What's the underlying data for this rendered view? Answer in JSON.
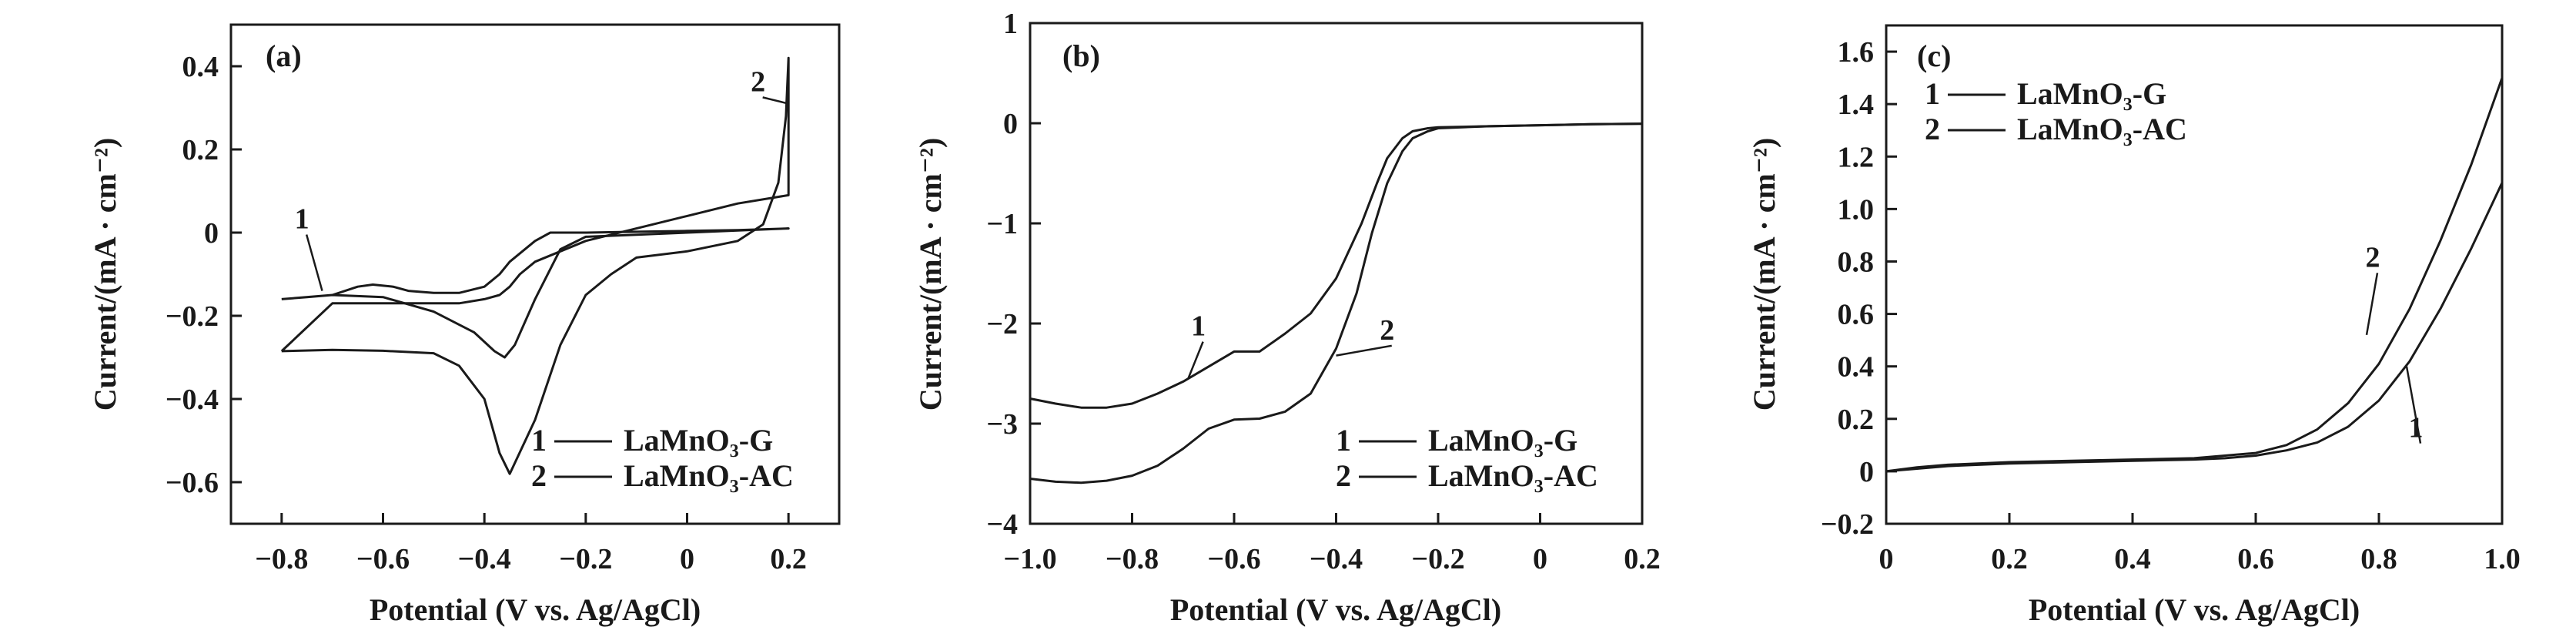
{
  "chart_data": [
    {
      "panel": "(a)",
      "type": "line",
      "xlabel": "Potential (V vs. Ag/AgCl)",
      "ylabel": "Current/(mA · cm⁻²)",
      "xlim": [
        -0.9,
        0.3
      ],
      "ylim": [
        -0.7,
        0.5
      ],
      "x_ticks": [
        "−0.8",
        "−0.6",
        "−0.4",
        "−0.2",
        "0",
        "0.2"
      ],
      "x_tick_values": [
        -0.8,
        -0.6,
        -0.4,
        -0.2,
        0,
        0.2
      ],
      "y_ticks": [
        "0.4",
        "0.2",
        "0",
        "−0.2",
        "−0.4",
        "−0.6"
      ],
      "y_tick_values": [
        0.4,
        0.2,
        0,
        -0.2,
        -0.4,
        -0.6
      ],
      "legend": [
        {
          "num": "1",
          "label": "LaMnO₃-G"
        },
        {
          "num": "2",
          "label": "LaMnO₃-AC"
        }
      ],
      "series": [
        {
          "name": "1",
          "x": [
            -0.8,
            -0.75,
            -0.7,
            -0.65,
            -0.62,
            -0.58,
            -0.55,
            -0.5,
            -0.45,
            -0.4,
            -0.37,
            -0.35,
            -0.3,
            -0.27,
            -0.25,
            -0.2,
            -0.1,
            0,
            0.1,
            0.2,
            0.2,
            0.1,
            0,
            -0.1,
            -0.2,
            -0.25,
            -0.3,
            -0.34,
            -0.36,
            -0.38,
            -0.42,
            -0.5,
            -0.6,
            -0.7,
            -0.8
          ],
          "y": [
            -0.16,
            -0.155,
            -0.15,
            -0.13,
            -0.125,
            -0.13,
            -0.14,
            -0.145,
            -0.145,
            -0.13,
            -0.1,
            -0.07,
            -0.02,
            0.0,
            0.0,
            0.0,
            0.002,
            0.004,
            0.006,
            0.01,
            0.01,
            0.005,
            0.0,
            -0.005,
            -0.01,
            -0.04,
            -0.16,
            -0.27,
            -0.3,
            -0.285,
            -0.24,
            -0.19,
            -0.155,
            -0.15,
            -0.16
          ]
        },
        {
          "name": "2",
          "x": [
            -0.8,
            -0.7,
            -0.6,
            -0.5,
            -0.45,
            -0.4,
            -0.37,
            -0.35,
            -0.3,
            -0.25,
            -0.2,
            -0.15,
            -0.1,
            0,
            0.1,
            0.15,
            0.18,
            0.195,
            0.2,
            0.2,
            0.1,
            0,
            -0.1,
            -0.2,
            -0.3,
            -0.33,
            -0.35,
            -0.37,
            -0.4,
            -0.45,
            -0.5,
            -0.6,
            -0.7,
            -0.8
          ],
          "y": [
            -0.285,
            -0.282,
            -0.284,
            -0.29,
            -0.32,
            -0.4,
            -0.53,
            -0.58,
            -0.45,
            -0.27,
            -0.15,
            -0.1,
            -0.06,
            -0.045,
            -0.02,
            0.02,
            0.12,
            0.28,
            0.42,
            0.09,
            0.07,
            0.04,
            0.01,
            -0.02,
            -0.07,
            -0.1,
            -0.13,
            -0.15,
            -0.16,
            -0.17,
            -0.17,
            -0.17,
            -0.17,
            -0.285
          ]
        }
      ],
      "annotations": [
        {
          "text": "1",
          "x": -0.76,
          "y": 0.01,
          "tip_x": -0.72,
          "tip_y": -0.14
        },
        {
          "text": "2",
          "x": 0.14,
          "y": 0.34,
          "tip_x": 0.2,
          "tip_y": 0.31
        }
      ]
    },
    {
      "panel": "(b)",
      "type": "line",
      "xlabel": "Potential (V vs. Ag/AgCl)",
      "ylabel": "Current/(mA · cm⁻²)",
      "xlim": [
        -1.0,
        0.2
      ],
      "ylim": [
        -4,
        1
      ],
      "x_ticks": [
        "−1.0",
        "−0.8",
        "−0.6",
        "−0.4",
        "−0.2",
        "0",
        "0.2"
      ],
      "x_tick_values": [
        -1.0,
        -0.8,
        -0.6,
        -0.4,
        -0.2,
        0,
        0.2
      ],
      "y_ticks": [
        "1",
        "0",
        "−1",
        "−2",
        "−3",
        "−4"
      ],
      "y_tick_values": [
        1,
        0,
        -1,
        -2,
        -3,
        -4
      ],
      "legend": [
        {
          "num": "1",
          "label": "LaMnO₃-G"
        },
        {
          "num": "2",
          "label": "LaMnO₃-AC"
        }
      ],
      "series": [
        {
          "name": "1",
          "x": [
            -1.0,
            -0.95,
            -0.9,
            -0.85,
            -0.8,
            -0.75,
            -0.7,
            -0.65,
            -0.6,
            -0.55,
            -0.5,
            -0.45,
            -0.4,
            -0.35,
            -0.32,
            -0.3,
            -0.27,
            -0.25,
            -0.22,
            -0.2,
            -0.1,
            0,
            0.1,
            0.2
          ],
          "y": [
            -2.75,
            -2.8,
            -2.84,
            -2.84,
            -2.8,
            -2.7,
            -2.58,
            -2.43,
            -2.28,
            -2.28,
            -2.1,
            -1.9,
            -1.55,
            -1.0,
            -0.6,
            -0.35,
            -0.15,
            -0.08,
            -0.05,
            -0.04,
            -0.03,
            -0.02,
            -0.01,
            -0.005
          ]
        },
        {
          "name": "2",
          "x": [
            -1.0,
            -0.95,
            -0.9,
            -0.85,
            -0.8,
            -0.75,
            -0.7,
            -0.65,
            -0.6,
            -0.55,
            -0.5,
            -0.45,
            -0.4,
            -0.36,
            -0.33,
            -0.3,
            -0.27,
            -0.25,
            -0.22,
            -0.2,
            -0.1,
            0,
            0.1,
            0.2
          ],
          "y": [
            -3.55,
            -3.58,
            -3.59,
            -3.57,
            -3.52,
            -3.42,
            -3.25,
            -3.05,
            -2.96,
            -2.95,
            -2.88,
            -2.7,
            -2.25,
            -1.7,
            -1.1,
            -0.6,
            -0.28,
            -0.15,
            -0.08,
            -0.05,
            -0.03,
            -0.02,
            -0.01,
            -0.005
          ]
        }
      ],
      "annotations": [
        {
          "text": "1",
          "x": -0.67,
          "y": -2.12,
          "tip_x": -0.69,
          "tip_y": -2.55
        },
        {
          "text": "2",
          "x": -0.3,
          "y": -2.16,
          "tip_x": -0.4,
          "tip_y": -2.32
        }
      ]
    },
    {
      "panel": "(c)",
      "type": "line",
      "xlabel": "Potential (V vs. Ag/AgCl)",
      "ylabel": "Current/(mA · cm⁻²)",
      "xlim": [
        0,
        1.0
      ],
      "ylim": [
        -0.2,
        1.7
      ],
      "x_ticks": [
        "0",
        "0.2",
        "0.4",
        "0.6",
        "0.8",
        "1.0"
      ],
      "x_tick_values": [
        0,
        0.2,
        0.4,
        0.6,
        0.8,
        1.0
      ],
      "y_ticks": [
        "1.6",
        "1.4",
        "1.2",
        "1.0",
        "0.8",
        "0.6",
        "0.4",
        "0.2",
        "0",
        "−0.2"
      ],
      "y_tick_values": [
        1.6,
        1.4,
        1.2,
        1.0,
        0.8,
        0.6,
        0.4,
        0.2,
        0,
        -0.2
      ],
      "legend": [
        {
          "num": "1",
          "label": "LaMnO₃-G"
        },
        {
          "num": "2",
          "label": "LaMnO₃-AC"
        }
      ],
      "series": [
        {
          "name": "1",
          "x": [
            0,
            0.05,
            0.1,
            0.2,
            0.3,
            0.4,
            0.5,
            0.55,
            0.6,
            0.65,
            0.7,
            0.75,
            0.8,
            0.85,
            0.9,
            0.95,
            1.0
          ],
          "y": [
            0.0,
            0.01,
            0.02,
            0.03,
            0.035,
            0.04,
            0.045,
            0.05,
            0.06,
            0.08,
            0.11,
            0.17,
            0.27,
            0.42,
            0.62,
            0.85,
            1.1
          ]
        },
        {
          "name": "2",
          "x": [
            0,
            0.05,
            0.1,
            0.2,
            0.3,
            0.4,
            0.5,
            0.55,
            0.6,
            0.65,
            0.7,
            0.75,
            0.8,
            0.85,
            0.9,
            0.95,
            1.0
          ],
          "y": [
            0.0,
            0.015,
            0.025,
            0.035,
            0.04,
            0.045,
            0.05,
            0.06,
            0.07,
            0.1,
            0.16,
            0.26,
            0.41,
            0.62,
            0.88,
            1.17,
            1.5
          ]
        }
      ],
      "annotations": [
        {
          "text": "2",
          "x": 0.79,
          "y": 0.78,
          "tip_x": 0.78,
          "tip_y": 0.52
        },
        {
          "text": "1",
          "x": 0.86,
          "y": 0.13,
          "tip_x": 0.845,
          "tip_y": 0.4
        }
      ]
    }
  ]
}
